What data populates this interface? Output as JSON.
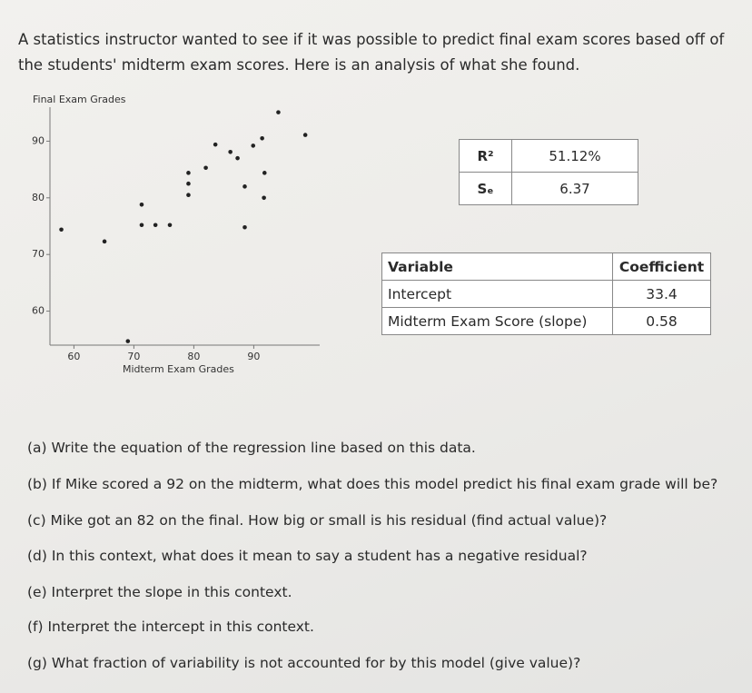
{
  "intro": "A statistics instructor wanted to see if it was possible to predict final exam scores based off of the students' midterm exam scores. Here is an analysis of what she found.",
  "chart_data": {
    "type": "scatter",
    "ylabel": "Final Exam Grades",
    "xlabel": "Midterm Exam Grades",
    "x": [
      57.9,
      65.1,
      69.0,
      71.3,
      71.3,
      73.6,
      76.0,
      79.1,
      79.1,
      79.1,
      82.0,
      83.6,
      86.1,
      87.3,
      88.5,
      88.5,
      89.9,
      91.4,
      91.8,
      91.7,
      94.1,
      98.6
    ],
    "values": [
      74.4,
      72.3,
      54.7,
      78.8,
      75.2,
      75.2,
      75.2,
      84.4,
      82.5,
      80.5,
      85.3,
      89.4,
      88.1,
      87.0,
      82.0,
      74.8,
      89.2,
      90.5,
      84.4,
      80.0,
      95.1,
      91.1
    ],
    "color": "#222222",
    "xlim": [
      56,
      101
    ],
    "ylim": [
      54,
      96
    ],
    "xticks": [
      60,
      70,
      80,
      90
    ],
    "yticks": [
      60,
      70,
      80,
      90
    ]
  },
  "stats_table": {
    "rows": [
      [
        "R²",
        "51.12%"
      ],
      [
        "Sₑ",
        "6.37"
      ]
    ]
  },
  "coef_table": {
    "header": [
      "Variable",
      "Coefficient"
    ],
    "rows": [
      [
        "Intercept",
        "33.4"
      ],
      [
        "Midterm Exam Score (slope)",
        "0.58"
      ]
    ]
  },
  "questions": [
    "(a) Write the equation of the regression line based on this data.",
    "(b) If Mike scored a 92 on the midterm, what does this model predict his final exam grade will be?",
    "(c) Mike got an 82 on the final. How big or small is his residual (find actual value)?",
    "(d) In this context, what does it mean to say a student has a negative residual?",
    "(e) Interpret the slope in this context.",
    "(f) Interpret the intercept in this context.",
    "(g) What fraction of variability is not accounted for by this model (give value)?"
  ]
}
